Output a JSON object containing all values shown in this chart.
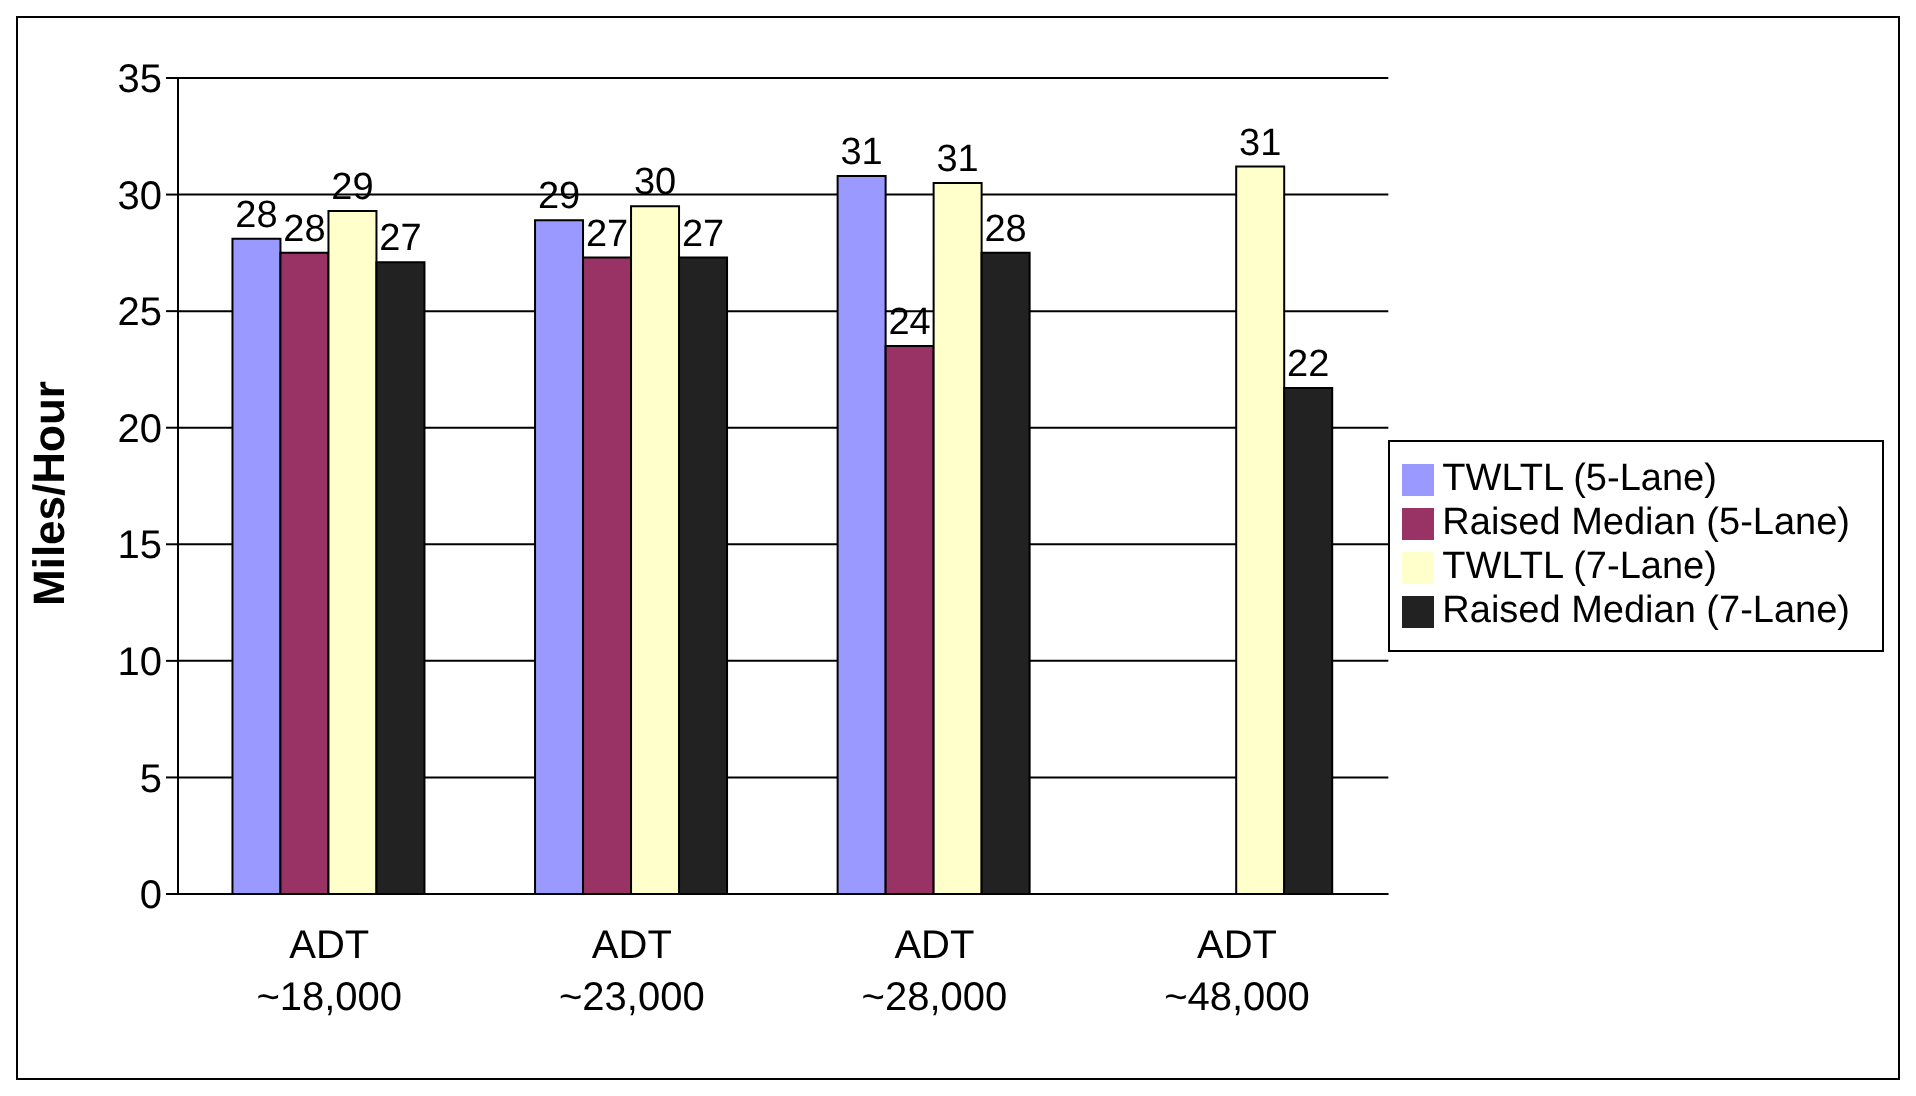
{
  "chart_data": {
    "type": "bar",
    "ylabel": "Miles/Hour",
    "categories": [
      "ADT\n~18,000",
      "ADT\n~23,000",
      "ADT\n~28,000",
      "ADT\n~48,000"
    ],
    "series": [
      {
        "name": "TWLTL (5-Lane)",
        "color": "#9999ff",
        "values": [
          28.1,
          28.9,
          30.8,
          null
        ],
        "value_labels": [
          "28",
          "29",
          "31",
          null
        ]
      },
      {
        "name": "Raised Median (5-Lane)",
        "color": "#993366",
        "values": [
          27.5,
          27.3,
          23.5,
          null
        ],
        "value_labels": [
          "28",
          "27",
          "24",
          null
        ]
      },
      {
        "name": "TWLTL (7-Lane)",
        "color": "#ffffcc",
        "values": [
          29.3,
          29.5,
          30.5,
          31.2
        ],
        "value_labels": [
          "29",
          "30",
          "31",
          "31"
        ]
      },
      {
        "name": "Raised Median (7-Lane)",
        "color": "#222222",
        "values": [
          27.1,
          27.3,
          27.5,
          21.7
        ],
        "value_labels": [
          "27",
          "27",
          "28",
          "22"
        ]
      }
    ],
    "ylim": [
      0,
      35
    ],
    "yticks": [
      0,
      5,
      10,
      15,
      20,
      25,
      30,
      35
    ],
    "grid": "y",
    "legend": "right"
  }
}
